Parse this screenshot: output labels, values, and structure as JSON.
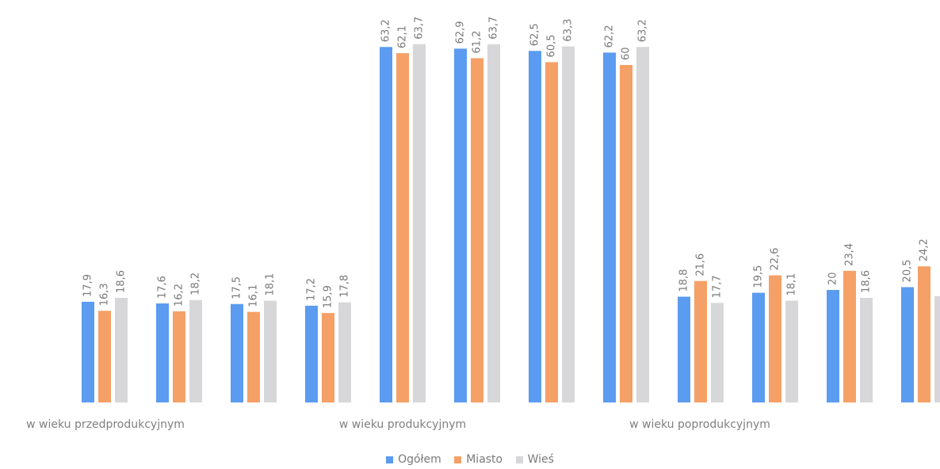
{
  "chart_data": {
    "type": "bar",
    "title": "",
    "xlabel": "",
    "ylabel": "",
    "ylim": [
      0,
      70
    ],
    "grid": false,
    "legend_position": "bottom",
    "groups": [
      "w wieku przedprodukcyjnym",
      "w wieku produkcyjnym",
      "w wieku poprodukcyjnym"
    ],
    "series": [
      {
        "name": "Ogółem",
        "color": "#5b9bf0",
        "values": [
          17.9,
          17.6,
          17.5,
          17.2,
          63.2,
          62.9,
          62.5,
          62.2,
          18.8,
          19.5,
          20,
          20.5
        ],
        "labels": [
          "17,9",
          "17,6",
          "17,5",
          "17,2",
          "63,2",
          "62,9",
          "62,5",
          "62,2",
          "18,8",
          "19,5",
          "20",
          "20,5"
        ]
      },
      {
        "name": "Miasto",
        "color": "#f5a066",
        "values": [
          16.3,
          16.2,
          16.1,
          15.9,
          62.1,
          61.2,
          60.5,
          60,
          21.6,
          22.6,
          23.4,
          24.2
        ],
        "labels": [
          "16,3",
          "16,2",
          "16,1",
          "15,9",
          "62,1",
          "61,2",
          "60,5",
          "60",
          "21,6",
          "22,6",
          "23,4",
          "24,2"
        ]
      },
      {
        "name": "Wieś",
        "color": "#d7d7d9",
        "values": [
          18.6,
          18.2,
          18.1,
          17.8,
          63.7,
          63.7,
          63.3,
          63.2,
          17.7,
          18.1,
          18.6,
          18.9
        ],
        "labels": [
          "18,6",
          "18,2",
          "18,1",
          "17,8",
          "63,7",
          "63,7",
          "63,3",
          "63,2",
          "17,7",
          "18,1",
          "18,6",
          ""
        ]
      }
    ]
  }
}
